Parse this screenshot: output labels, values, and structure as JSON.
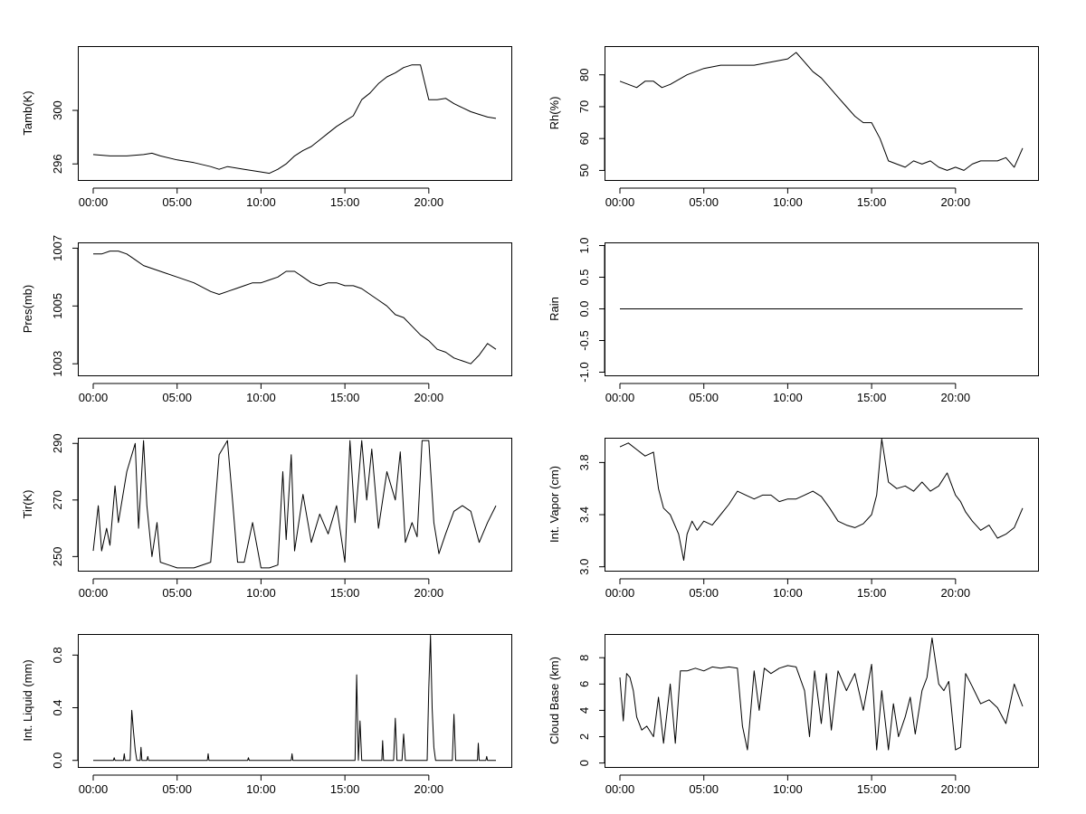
{
  "chart_data": [
    {
      "id": "tamb",
      "type": "line",
      "ylabel": "Tamb(K)",
      "xlim": [
        0,
        24
      ],
      "ylim": [
        294.8,
        304.8
      ],
      "x_ticks": [
        0,
        5,
        10,
        15,
        20
      ],
      "x_tick_labels": [
        "00:00",
        "05:00",
        "10:00",
        "15:00",
        "20:00"
      ],
      "y_ticks": [
        296,
        300
      ],
      "y_tick_labels": [
        "296",
        "300"
      ],
      "series": [
        {
          "x": [
            0,
            1,
            2,
            3,
            3.5,
            4,
            5,
            6,
            7,
            7.5,
            8,
            9,
            10,
            10.5,
            11,
            11.5,
            12,
            12.5,
            13,
            13.5,
            14,
            14.5,
            15,
            15.5,
            16,
            16.5,
            17,
            17.5,
            18,
            18.5,
            19,
            19.5,
            20,
            20.5,
            21,
            21.5,
            22,
            22.5,
            23,
            23.5,
            24
          ],
          "y": [
            296.7,
            296.6,
            296.6,
            296.7,
            296.8,
            296.6,
            296.3,
            296.1,
            295.8,
            295.6,
            295.8,
            295.6,
            295.4,
            295.3,
            295.6,
            296.0,
            296.6,
            297.0,
            297.3,
            297.8,
            298.3,
            298.8,
            299.2,
            299.6,
            300.8,
            301.3,
            302.0,
            302.5,
            302.8,
            303.2,
            303.4,
            303.4,
            300.8,
            300.8,
            300.9,
            300.5,
            300.2,
            299.9,
            299.7,
            299.5,
            299.4
          ]
        }
      ]
    },
    {
      "id": "rh",
      "type": "line",
      "ylabel": "Rh(%)",
      "xlim": [
        0,
        24
      ],
      "ylim": [
        47,
        89
      ],
      "x_ticks": [
        0,
        5,
        10,
        15,
        20
      ],
      "x_tick_labels": [
        "00:00",
        "05:00",
        "10:00",
        "15:00",
        "20:00"
      ],
      "y_ticks": [
        50,
        60,
        70,
        80
      ],
      "y_tick_labels": [
        "50",
        "60",
        "70",
        "80"
      ],
      "series": [
        {
          "x": [
            0,
            0.5,
            1,
            1.5,
            2,
            2.5,
            3,
            4,
            5,
            6,
            7,
            8,
            9,
            10,
            10.5,
            11,
            11.5,
            12,
            12.5,
            13,
            13.5,
            14,
            14.5,
            15,
            15.5,
            16,
            16.5,
            17,
            17.5,
            18,
            18.5,
            19,
            19.5,
            20,
            20.5,
            21,
            21.5,
            22,
            22.5,
            23,
            23.5,
            24
          ],
          "y": [
            78,
            77,
            76,
            78,
            78,
            76,
            77,
            80,
            82,
            83,
            83,
            83,
            84,
            85,
            87,
            84,
            81,
            79,
            76,
            73,
            70,
            67,
            65,
            65,
            60,
            53,
            52,
            51,
            53,
            52,
            53,
            51,
            50,
            51,
            50,
            52,
            53,
            53,
            53,
            54,
            51,
            57
          ]
        }
      ]
    },
    {
      "id": "pres",
      "type": "line",
      "ylabel": "Pres(mb)",
      "xlim": [
        0,
        24
      ],
      "ylim": [
        1002.6,
        1007.2
      ],
      "x_ticks": [
        0,
        5,
        10,
        15,
        20
      ],
      "x_tick_labels": [
        "00:00",
        "05:00",
        "10:00",
        "15:00",
        "20:00"
      ],
      "y_ticks": [
        1003,
        1005,
        1007
      ],
      "y_tick_labels": [
        "1003",
        "1005",
        "1007"
      ],
      "series": [
        {
          "x": [
            0,
            0.5,
            1,
            1.5,
            2,
            2.5,
            3,
            4,
            5,
            6,
            7,
            7.5,
            8,
            8.5,
            9,
            9.5,
            10,
            10.5,
            11,
            11.5,
            12,
            12.5,
            13,
            13.5,
            14,
            14.5,
            15,
            15.5,
            16,
            16.5,
            17,
            17.5,
            18,
            18.5,
            19,
            19.5,
            20,
            20.5,
            21,
            21.5,
            22,
            22.5,
            23,
            23.5,
            24
          ],
          "y": [
            1006.8,
            1006.8,
            1006.9,
            1006.9,
            1006.8,
            1006.6,
            1006.4,
            1006.2,
            1006.0,
            1005.8,
            1005.5,
            1005.4,
            1005.5,
            1005.6,
            1005.7,
            1005.8,
            1005.8,
            1005.9,
            1006.0,
            1006.2,
            1006.2,
            1006.0,
            1005.8,
            1005.7,
            1005.8,
            1005.8,
            1005.7,
            1005.7,
            1005.6,
            1005.4,
            1005.2,
            1005.0,
            1004.7,
            1004.6,
            1004.3,
            1004.0,
            1003.8,
            1003.5,
            1003.4,
            1003.2,
            1003.1,
            1003.0,
            1003.3,
            1003.7,
            1003.5
          ]
        }
      ]
    },
    {
      "id": "rain",
      "type": "line",
      "ylabel": "Rain",
      "xlim": [
        0,
        24
      ],
      "ylim": [
        -1.05,
        1.05
      ],
      "x_ticks": [
        0,
        5,
        10,
        15,
        20
      ],
      "x_tick_labels": [
        "00:00",
        "05:00",
        "10:00",
        "15:00",
        "20:00"
      ],
      "y_ticks": [
        -1.0,
        -0.5,
        0.0,
        0.5,
        1.0
      ],
      "y_tick_labels": [
        "-1.0",
        "-0.5",
        "0.0",
        "0.5",
        "1.0"
      ],
      "series": [
        {
          "x": [
            0,
            24
          ],
          "y": [
            0,
            0
          ]
        }
      ]
    },
    {
      "id": "tir",
      "type": "line",
      "ylabel": "Tir(K)",
      "xlim": [
        0,
        24
      ],
      "ylim": [
        245,
        292
      ],
      "x_ticks": [
        0,
        5,
        10,
        15,
        20
      ],
      "x_tick_labels": [
        "00:00",
        "05:00",
        "10:00",
        "15:00",
        "20:00"
      ],
      "y_ticks": [
        250,
        270,
        290
      ],
      "y_tick_labels": [
        "250",
        "270",
        "290"
      ],
      "series": [
        {
          "x": [
            0,
            0.3,
            0.5,
            0.8,
            1,
            1.3,
            1.5,
            2,
            2.5,
            2.7,
            3,
            3.2,
            3.5,
            3.8,
            4,
            4.5,
            5,
            6,
            7,
            7.5,
            8,
            8.3,
            8.6,
            9,
            9.5,
            10,
            10.5,
            11,
            11.3,
            11.5,
            11.8,
            12,
            12.5,
            13,
            13.5,
            14,
            14.5,
            15,
            15.3,
            15.6,
            16,
            16.3,
            16.6,
            17,
            17.5,
            18,
            18.3,
            18.6,
            19,
            19.3,
            19.6,
            20,
            20.3,
            20.6,
            21,
            21.5,
            22,
            22.5,
            23,
            23.5,
            24
          ],
          "y": [
            252,
            268,
            252,
            260,
            254,
            275,
            262,
            280,
            290,
            260,
            291,
            268,
            250,
            262,
            248,
            247,
            246,
            246,
            248,
            286,
            291,
            270,
            248,
            248,
            262,
            246,
            246,
            247,
            280,
            256,
            286,
            252,
            272,
            255,
            265,
            258,
            268,
            248,
            291,
            262,
            291,
            270,
            288,
            260,
            280,
            270,
            287,
            255,
            262,
            257,
            291,
            291,
            262,
            251,
            258,
            266,
            268,
            266,
            255,
            262,
            268
          ]
        }
      ]
    },
    {
      "id": "vapor",
      "type": "line",
      "ylabel": "Int. Vapor (cm)",
      "xlim": [
        0,
        24
      ],
      "ylim": [
        2.97,
        3.99
      ],
      "x_ticks": [
        0,
        5,
        10,
        15,
        20
      ],
      "x_tick_labels": [
        "00:00",
        "05:00",
        "10:00",
        "15:00",
        "20:00"
      ],
      "y_ticks": [
        3.0,
        3.4,
        3.8
      ],
      "y_tick_labels": [
        "3.0",
        "3.4",
        "3.8"
      ],
      "series": [
        {
          "x": [
            0,
            0.5,
            1,
            1.5,
            2,
            2.3,
            2.6,
            3,
            3.5,
            3.8,
            4,
            4.3,
            4.6,
            5,
            5.5,
            6,
            6.5,
            7,
            7.5,
            8,
            8.5,
            9,
            9.5,
            10,
            10.5,
            11,
            11.5,
            12,
            12.5,
            13,
            13.5,
            14,
            14.5,
            15,
            15.3,
            15.6,
            16,
            16.5,
            17,
            17.5,
            18,
            18.5,
            19,
            19.5,
            20,
            20.3,
            20.6,
            21,
            21.5,
            22,
            22.5,
            23,
            23.5,
            24
          ],
          "y": [
            3.92,
            3.95,
            3.9,
            3.85,
            3.88,
            3.6,
            3.45,
            3.4,
            3.25,
            3.05,
            3.25,
            3.35,
            3.28,
            3.35,
            3.32,
            3.4,
            3.48,
            3.58,
            3.55,
            3.52,
            3.55,
            3.55,
            3.5,
            3.52,
            3.52,
            3.55,
            3.58,
            3.54,
            3.45,
            3.35,
            3.32,
            3.3,
            3.33,
            3.4,
            3.55,
            3.98,
            3.65,
            3.6,
            3.62,
            3.58,
            3.65,
            3.58,
            3.62,
            3.72,
            3.55,
            3.5,
            3.42,
            3.35,
            3.28,
            3.32,
            3.22,
            3.25,
            3.3,
            3.45
          ]
        }
      ]
    },
    {
      "id": "liquid",
      "type": "line",
      "ylabel": "Int. Liquid (mm)",
      "xlim": [
        0,
        24
      ],
      "ylim": [
        -0.05,
        0.96
      ],
      "x_ticks": [
        0,
        5,
        10,
        15,
        20
      ],
      "x_tick_labels": [
        "00:00",
        "05:00",
        "10:00",
        "15:00",
        "20:00"
      ],
      "y_ticks": [
        0.0,
        0.4,
        0.8
      ],
      "y_tick_labels": [
        "0.0",
        "0.4",
        "0.8"
      ],
      "series": [
        {
          "x": [
            0,
            1.2,
            1.25,
            1.3,
            1.8,
            1.85,
            1.9,
            2.2,
            2.3,
            2.4,
            2.5,
            2.6,
            2.8,
            2.85,
            2.9,
            3.2,
            3.25,
            3.3,
            6.8,
            6.85,
            6.9,
            9.2,
            9.25,
            9.3,
            11.8,
            11.85,
            11.9,
            15.6,
            15.7,
            15.8,
            15.9,
            16.0,
            17.2,
            17.25,
            17.3,
            17.9,
            18.0,
            18.1,
            18.4,
            18.5,
            18.6,
            19.9,
            20.0,
            20.1,
            20.2,
            20.3,
            20.4,
            21.4,
            21.5,
            21.6,
            22.9,
            22.95,
            23.0,
            23.4,
            23.45,
            23.5,
            24
          ],
          "y": [
            0,
            0,
            0.02,
            0,
            0,
            0.05,
            0,
            0,
            0.38,
            0.22,
            0.08,
            0,
            0,
            0.1,
            0,
            0,
            0.03,
            0,
            0,
            0.05,
            0,
            0,
            0.02,
            0,
            0,
            0.05,
            0,
            0,
            0.65,
            0,
            0.3,
            0,
            0,
            0.15,
            0,
            0,
            0.32,
            0,
            0,
            0.2,
            0,
            0,
            0.55,
            0.95,
            0.4,
            0.1,
            0,
            0,
            0.35,
            0,
            0,
            0.13,
            0,
            0,
            0.03,
            0,
            0
          ]
        }
      ]
    },
    {
      "id": "cloudbase",
      "type": "line",
      "ylabel": "Cloud Base (km)",
      "xlim": [
        0,
        24
      ],
      "ylim": [
        -0.3,
        9.8
      ],
      "x_ticks": [
        0,
        5,
        10,
        15,
        20
      ],
      "x_tick_labels": [
        "00:00",
        "05:00",
        "10:00",
        "15:00",
        "20:00"
      ],
      "y_ticks": [
        0,
        2,
        4,
        6,
        8
      ],
      "y_tick_labels": [
        "0",
        "2",
        "4",
        "6",
        "8"
      ],
      "series": [
        {
          "x": [
            0,
            0.2,
            0.4,
            0.6,
            0.8,
            1.0,
            1.3,
            1.6,
            2.0,
            2.3,
            2.6,
            3.0,
            3.3,
            3.6,
            4.0,
            4.5,
            5.0,
            5.5,
            6.0,
            6.5,
            7.0,
            7.3,
            7.6,
            8.0,
            8.3,
            8.6,
            9.0,
            9.5,
            10.0,
            10.5,
            11.0,
            11.3,
            11.6,
            12.0,
            12.3,
            12.6,
            13.0,
            13.5,
            14.0,
            14.5,
            15.0,
            15.3,
            15.6,
            16.0,
            16.3,
            16.6,
            17.0,
            17.3,
            17.6,
            18.0,
            18.3,
            18.6,
            19.0,
            19.3,
            19.6,
            20.0,
            20.3,
            20.6,
            21.0,
            21.5,
            22.0,
            22.5,
            23.0,
            23.5,
            24.0
          ],
          "y": [
            6.5,
            3.2,
            6.8,
            6.5,
            5.5,
            3.5,
            2.5,
            2.8,
            2.0,
            5.0,
            1.5,
            6.0,
            1.5,
            7.0,
            7.0,
            7.2,
            7.0,
            7.3,
            7.2,
            7.3,
            7.2,
            2.8,
            1.0,
            7.0,
            4.0,
            7.2,
            6.8,
            7.2,
            7.4,
            7.3,
            5.5,
            2.0,
            7.0,
            3.0,
            6.8,
            2.5,
            7.0,
            5.5,
            6.8,
            4.0,
            7.5,
            1.0,
            5.5,
            1.0,
            4.5,
            2.0,
            3.5,
            5.0,
            2.2,
            5.5,
            6.5,
            9.5,
            6.0,
            5.5,
            6.2,
            1.0,
            1.2,
            6.8,
            5.8,
            4.5,
            4.8,
            4.2,
            3.0,
            6.0,
            4.3
          ]
        }
      ]
    }
  ]
}
